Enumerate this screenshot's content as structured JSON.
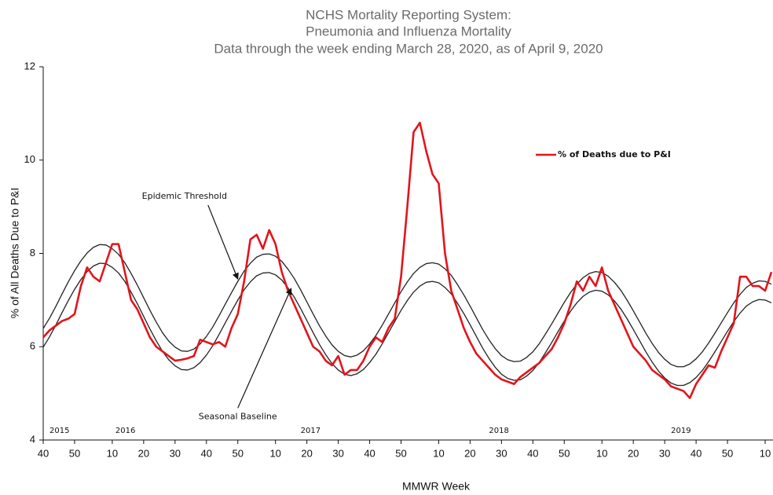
{
  "chart_data": {
    "type": "line",
    "title": [
      "NCHS Mortality Reporting System:",
      "Pneumonia and Influenza Mortality",
      "Data through the week ending March 28, 2020, as of April 9, 2020"
    ],
    "xlabel": "MMWR Week",
    "ylabel": "% of All Deaths Due to P&I",
    "xlim": [
      0,
      232
    ],
    "ylim": [
      4,
      12
    ],
    "yticks": [
      4,
      6,
      8,
      10,
      12
    ],
    "xticks": [
      {
        "value": 0,
        "label": "40"
      },
      {
        "value": 10,
        "label": "50"
      },
      {
        "value": 22,
        "label": "10"
      },
      {
        "value": 32,
        "label": "20"
      },
      {
        "value": 42,
        "label": "30"
      },
      {
        "value": 52,
        "label": "40"
      },
      {
        "value": 62,
        "label": "50"
      },
      {
        "value": 74,
        "label": "10"
      },
      {
        "value": 84,
        "label": "20"
      },
      {
        "value": 94,
        "label": "30"
      },
      {
        "value": 104,
        "label": "40"
      },
      {
        "value": 114,
        "label": "50"
      },
      {
        "value": 126,
        "label": "10"
      },
      {
        "value": 136,
        "label": "20"
      },
      {
        "value": 146,
        "label": "30"
      },
      {
        "value": 156,
        "label": "40"
      },
      {
        "value": 166,
        "label": "50"
      },
      {
        "value": 178,
        "label": "10"
      },
      {
        "value": 188,
        "label": "20"
      },
      {
        "value": 198,
        "label": "30"
      },
      {
        "value": 208,
        "label": "40"
      },
      {
        "value": 218,
        "label": "50"
      },
      {
        "value": 230,
        "label": "10"
      }
    ],
    "grid": false,
    "legend": "upper right",
    "x": [
      0,
      2,
      4,
      6,
      8,
      10,
      12,
      14,
      16,
      18,
      20,
      22,
      24,
      26,
      28,
      30,
      32,
      34,
      36,
      38,
      40,
      42,
      44,
      46,
      48,
      50,
      52,
      54,
      56,
      58,
      60,
      62,
      64,
      66,
      68,
      70,
      72,
      74,
      76,
      78,
      80,
      82,
      84,
      86,
      88,
      90,
      92,
      94,
      96,
      98,
      100,
      102,
      104,
      106,
      108,
      110,
      112,
      114,
      116,
      118,
      120,
      122,
      124,
      126,
      128,
      130,
      132,
      134,
      136,
      138,
      140,
      142,
      144,
      146,
      148,
      150,
      152,
      154,
      156,
      158,
      160,
      162,
      164,
      166,
      168,
      170,
      172,
      174,
      176,
      178,
      180,
      182,
      184,
      186,
      188,
      190,
      192,
      194,
      196,
      198,
      200,
      202,
      204,
      206,
      208,
      210,
      212,
      214,
      216,
      218,
      220,
      222,
      224,
      226,
      228,
      230,
      232
    ],
    "series": [
      {
        "name": "% of Deaths due to P&I",
        "color": "#e3141b",
        "values": [
          6.2,
          6.35,
          6.45,
          6.55,
          6.6,
          6.7,
          7.3,
          7.7,
          7.5,
          7.4,
          7.8,
          8.2,
          8.2,
          7.6,
          7.0,
          6.8,
          6.5,
          6.2,
          6.0,
          5.9,
          5.8,
          5.7,
          5.72,
          5.75,
          5.8,
          6.15,
          6.1,
          6.05,
          6.1,
          6.0,
          6.4,
          6.7,
          7.4,
          8.3,
          8.4,
          8.1,
          8.5,
          8.2,
          7.6,
          7.2,
          6.9,
          6.6,
          6.3,
          6.0,
          5.9,
          5.7,
          5.6,
          5.8,
          5.4,
          5.5,
          5.5,
          5.7,
          6.0,
          6.2,
          6.1,
          6.4,
          6.6,
          7.5,
          9.0,
          10.6,
          10.8,
          10.2,
          9.7,
          9.5,
          8.0,
          7.2,
          6.8,
          6.4,
          6.1,
          5.85,
          5.7,
          5.55,
          5.4,
          5.3,
          5.25,
          5.2,
          5.35,
          5.45,
          5.55,
          5.65,
          5.8,
          5.95,
          6.2,
          6.5,
          6.9,
          7.4,
          7.2,
          7.5,
          7.3,
          7.7,
          7.2,
          6.9,
          6.6,
          6.3,
          6.0,
          5.85,
          5.7,
          5.5,
          5.4,
          5.3,
          5.15,
          5.1,
          5.05,
          4.9,
          5.2,
          5.4,
          5.6,
          5.55,
          5.9,
          6.2,
          6.5,
          7.5,
          7.5,
          7.3,
          7.3,
          7.2,
          7.6
        ]
      },
      {
        "color": "#222222",
        "values": [
          6.39,
          6.61,
          6.86,
          7.13,
          7.39,
          7.63,
          7.84,
          8.01,
          8.13,
          8.19,
          8.18,
          8.1,
          7.98,
          7.8,
          7.57,
          7.32,
          7.05,
          6.78,
          6.53,
          6.3,
          6.12,
          5.99,
          5.91,
          5.9,
          5.95,
          6.06,
          6.22,
          6.42,
          6.66,
          6.91,
          7.16,
          7.4,
          7.62,
          7.79,
          7.92,
          7.98,
          7.99,
          7.94,
          7.83,
          7.66,
          7.46,
          7.22,
          6.96,
          6.7,
          6.45,
          6.23,
          6.04,
          5.9,
          5.81,
          5.78,
          5.82,
          5.91,
          6.06,
          6.24,
          6.46,
          6.7,
          6.94,
          7.18,
          7.39,
          7.57,
          7.7,
          7.78,
          7.8,
          7.77,
          7.67,
          7.53,
          7.33,
          7.11,
          6.87,
          6.62,
          6.37,
          6.15,
          5.96,
          5.81,
          5.72,
          5.68,
          5.69,
          5.77,
          5.89,
          6.06,
          6.27,
          6.49,
          6.72,
          6.95,
          7.16,
          7.34,
          7.48,
          7.57,
          7.61,
          7.59,
          7.51,
          7.38,
          7.21,
          7.0,
          6.77,
          6.53,
          6.29,
          6.07,
          5.88,
          5.73,
          5.62,
          5.57,
          5.57,
          5.63,
          5.74,
          5.89,
          6.08,
          6.29,
          6.51,
          6.73,
          6.94,
          7.12,
          7.27,
          7.36,
          7.41,
          7.4,
          7.34
        ]
      },
      {
        "color": "#222222",
        "values": [
          5.99,
          6.21,
          6.46,
          6.73,
          6.99,
          7.23,
          7.44,
          7.61,
          7.73,
          7.79,
          7.78,
          7.7,
          7.58,
          7.4,
          7.17,
          6.92,
          6.65,
          6.38,
          6.13,
          5.9,
          5.72,
          5.59,
          5.51,
          5.5,
          5.55,
          5.66,
          5.82,
          6.02,
          6.26,
          6.51,
          6.76,
          7.0,
          7.22,
          7.39,
          7.52,
          7.58,
          7.59,
          7.54,
          7.43,
          7.26,
          7.06,
          6.82,
          6.56,
          6.3,
          6.05,
          5.83,
          5.64,
          5.5,
          5.41,
          5.38,
          5.42,
          5.51,
          5.66,
          5.84,
          6.06,
          6.3,
          6.54,
          6.78,
          6.99,
          7.17,
          7.3,
          7.38,
          7.4,
          7.37,
          7.27,
          7.13,
          6.93,
          6.71,
          6.47,
          6.22,
          5.97,
          5.75,
          5.56,
          5.41,
          5.32,
          5.28,
          5.29,
          5.37,
          5.49,
          5.66,
          5.87,
          6.09,
          6.32,
          6.55,
          6.76,
          6.94,
          7.08,
          7.17,
          7.21,
          7.19,
          7.11,
          6.98,
          6.81,
          6.6,
          6.37,
          6.13,
          5.89,
          5.67,
          5.48,
          5.33,
          5.22,
          5.17,
          5.17,
          5.23,
          5.34,
          5.49,
          5.68,
          5.89,
          6.11,
          6.33,
          6.54,
          6.72,
          6.87,
          6.96,
          7.01,
          7.0,
          6.94
        ]
      }
    ],
    "year_labels": [
      {
        "text": "2015",
        "x": 2,
        "y": 4.2
      },
      {
        "text": "2016",
        "x": 23,
        "y": 4.2
      },
      {
        "text": "2017",
        "x": 82,
        "y": 4.2
      },
      {
        "text": "2018",
        "x": 142,
        "y": 4.2
      },
      {
        "text": "2019",
        "x": 200,
        "y": 4.2
      }
    ],
    "annotations": [
      {
        "text": "Epidemic Threshold",
        "x": 45,
        "y": 9.22,
        "arrow_to": [
          62,
          7.45
        ]
      },
      {
        "text": "Seasonal Baseline",
        "x": 62,
        "y": 4.5,
        "arrow_to": [
          79,
          7.25
        ]
      }
    ]
  }
}
